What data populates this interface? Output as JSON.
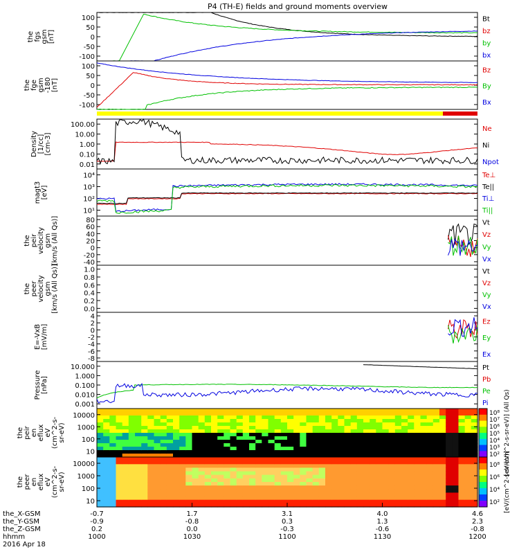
{
  "title": "P4 (TH-E) fields and ground moments overview",
  "colors": {
    "black": "#000000",
    "red": "#e00000",
    "green": "#00c000",
    "blue": "#0000e0",
    "yellow": "#ffff00",
    "axis": "#000000"
  },
  "chart_data": [
    {
      "type": "line",
      "id": "fgs",
      "ylabel": [
        "the",
        "fgs",
        "gsm",
        "[nT]"
      ],
      "ylim": [
        -100,
        100
      ],
      "yticks": [
        "100",
        "50",
        "0",
        "-50",
        "-100"
      ],
      "series": [
        {
          "name": "Bt",
          "color": "black"
        },
        {
          "name": "bz",
          "color": "red"
        },
        {
          "name": "by",
          "color": "green"
        },
        {
          "name": "bx",
          "color": "blue"
        }
      ]
    },
    {
      "type": "line",
      "id": "fge",
      "ylabel": [
        "the",
        "fge",
        "gsm",
        "-180",
        "[nT]"
      ],
      "ylim": [
        -120,
        120
      ],
      "yticks": [
        "100",
        "50",
        "0",
        "-50",
        "-100"
      ],
      "series": [
        {
          "name": "Bz",
          "color": "red"
        },
        {
          "name": "By",
          "color": "green"
        },
        {
          "name": "Bx",
          "color": "blue"
        }
      ]
    },
    {
      "type": "line",
      "id": "density",
      "log": true,
      "ylabel": [
        "Density",
        "[1/cc]",
        "[cm-3]"
      ],
      "ylim": [
        0.01,
        300
      ],
      "yticks": [
        "100.00",
        "10.00",
        "1.00",
        "0.10",
        "0.01"
      ],
      "series": [
        {
          "name": "Ne",
          "color": "red"
        },
        {
          "name": "Ni",
          "color": "black"
        },
        {
          "name": "Npot",
          "color": "blue"
        }
      ]
    },
    {
      "type": "line",
      "id": "temp",
      "log": true,
      "ylabel": [
        "magt3",
        "[eV]"
      ],
      "ylim": [
        10,
        100000
      ],
      "yticks": [
        "10⁴",
        "10³",
        "10²",
        "10¹"
      ],
      "series": [
        {
          "name": "Te⊥",
          "color": "red"
        },
        {
          "name": "Te||",
          "color": "black"
        },
        {
          "name": "Ti⊥",
          "color": "blue"
        },
        {
          "name": "Ti||",
          "color": "green"
        }
      ]
    },
    {
      "type": "line",
      "id": "peir_vel",
      "ylabel": [
        "the",
        "peir",
        "velocity",
        "gsm",
        "[km/s (All Qs)]"
      ],
      "ylim": [
        -50,
        80
      ],
      "yticks": [
        "80",
        "60",
        "40",
        "20",
        "0",
        "-20",
        "-40"
      ],
      "series": [
        {
          "name": "Vt",
          "color": "black"
        },
        {
          "name": "Vz",
          "color": "red"
        },
        {
          "name": "Vy",
          "color": "green"
        },
        {
          "name": "Vx",
          "color": "blue"
        }
      ]
    },
    {
      "type": "line",
      "id": "peer_vel",
      "ylabel": [
        "the",
        "peer",
        "velocity",
        "gsm",
        "[km/s (All Qs)]"
      ],
      "ylim": [
        0,
        1
      ],
      "yticks": [
        "1.0",
        "0.8",
        "0.6",
        "0.4",
        "0.2",
        "0.0"
      ],
      "series": [
        {
          "name": "Vt",
          "color": "black"
        },
        {
          "name": "Vz",
          "color": "red"
        },
        {
          "name": "Vy",
          "color": "green"
        },
        {
          "name": "Vx",
          "color": "blue"
        }
      ]
    },
    {
      "type": "line",
      "id": "efield",
      "ylabel": [
        "E=-VxB",
        "[mV/m]"
      ],
      "ylim": [
        -9,
        5
      ],
      "yticks": [
        "4",
        "2",
        "0",
        "-2",
        "-4",
        "-6",
        "-8"
      ],
      "series": [
        {
          "name": "Ez",
          "color": "red"
        },
        {
          "name": "Ey",
          "color": "green"
        },
        {
          "name": "Ex",
          "color": "blue"
        }
      ]
    },
    {
      "type": "line",
      "id": "pressure",
      "log": true,
      "ylabel": [
        "Pressure",
        "[nPa]"
      ],
      "ylim": [
        0.001,
        30
      ],
      "yticks": [
        "10.000",
        "1.000",
        "0.100",
        "0.010",
        "0.001"
      ],
      "series": [
        {
          "name": "Pt",
          "color": "black"
        },
        {
          "name": "Pb",
          "color": "red"
        },
        {
          "name": "Pe",
          "color": "green"
        },
        {
          "name": "Pi",
          "color": "blue"
        }
      ]
    },
    {
      "type": "heatmap",
      "id": "peir_spec",
      "ylabel": [
        "the",
        "peir",
        "en",
        "eflux",
        "eV",
        "(cm^2-s-",
        "sr-eV)"
      ],
      "yticks": [
        "10000",
        "1000",
        "100",
        "10"
      ],
      "colorbar_label": "[eV/(cm^2-s-sr-eV)] (All Qs)",
      "colorbar_ticks": [
        "10⁸",
        "10⁷",
        "10⁶",
        "10⁵",
        "10⁴",
        "10³",
        "10²"
      ]
    },
    {
      "type": "heatmap",
      "id": "peer_spec",
      "ylabel": [
        "the",
        "peer",
        "en",
        "eflux",
        "eV",
        "(cm^2-s-",
        "sr-eV)"
      ],
      "yticks": [
        "10000",
        "1000",
        "100",
        "10"
      ],
      "colorbar_label": "[eV/(cm^2-s-sr-eV)]",
      "colorbar_ticks": [
        "10⁸",
        "10⁶",
        "10⁴",
        "10²"
      ]
    }
  ],
  "xaxis": {
    "row_labels": [
      "the_X-GSM",
      "the_Y-GSM",
      "the_Z-GSM",
      "hhmm",
      "2016 Apr 18"
    ],
    "ticks": [
      {
        "x_gsm": "-0.7",
        "y_gsm": "-0.9",
        "z_gsm": "0.2",
        "hhmm": "1000"
      },
      {
        "x_gsm": "1.7",
        "y_gsm": "-0.8",
        "z_gsm": "0.0",
        "hhmm": "1030"
      },
      {
        "x_gsm": "3.1",
        "y_gsm": "0.3",
        "z_gsm": "-0.3",
        "hhmm": "1100"
      },
      {
        "x_gsm": "4.0",
        "y_gsm": "1.3",
        "z_gsm": "-0.6",
        "hhmm": "1130"
      },
      {
        "x_gsm": "4.6",
        "y_gsm": "2.3",
        "z_gsm": "-0.8",
        "hhmm": "1200"
      }
    ]
  }
}
